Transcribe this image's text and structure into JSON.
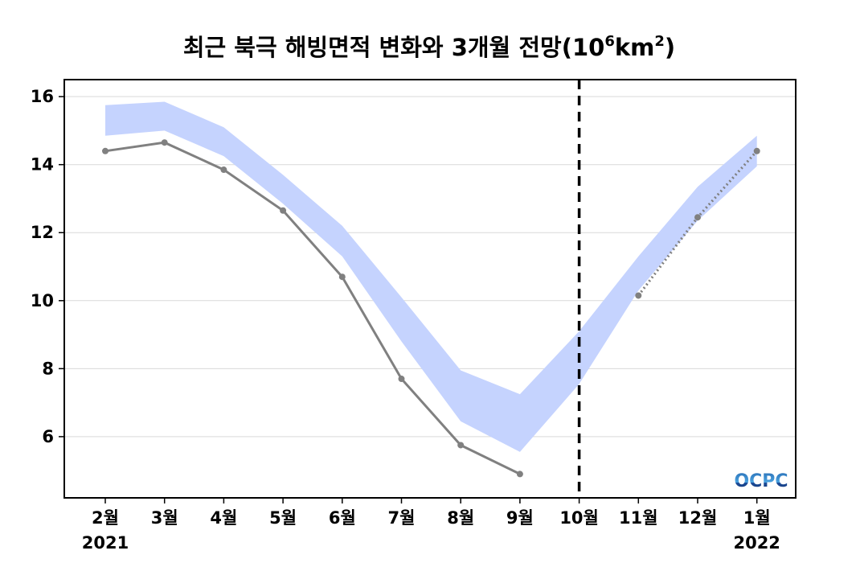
{
  "chart_data": {
    "type": "line",
    "title": "최근 북극 해빙면적 변화와 3개월 전망(10",
    "title_exp1": "6",
    "title_mid": "km",
    "title_exp2": "2",
    "title_end": ")",
    "categories": [
      "2월",
      "3월",
      "4월",
      "5월",
      "6월",
      "7월",
      "8월",
      "9월",
      "10월",
      "11월",
      "12월",
      "1월"
    ],
    "year_labels": [
      {
        "category": "2월",
        "label": "2021"
      },
      {
        "category": "1월",
        "label": "2022"
      }
    ],
    "ylim": [
      4.2,
      16.5
    ],
    "yticks": [
      6,
      8,
      10,
      12,
      14,
      16
    ],
    "grid": true,
    "forecast_divider_category": "10월",
    "series": [
      {
        "style": "solid",
        "color": "#808080",
        "points": [
          {
            "x": "2월",
            "y": 14.4
          },
          {
            "x": "3월",
            "y": 14.65
          },
          {
            "x": "4월",
            "y": 13.85
          },
          {
            "x": "5월",
            "y": 12.65
          },
          {
            "x": "6월",
            "y": 10.7
          },
          {
            "x": "7월",
            "y": 7.7
          },
          {
            "x": "8월",
            "y": 5.75
          },
          {
            "x": "9월",
            "y": 4.9
          }
        ]
      },
      {
        "style": "dotted",
        "color": "#808080",
        "points": [
          {
            "x": "11월",
            "y": 10.15
          },
          {
            "x": "12월",
            "y": 12.45
          },
          {
            "x": "1월",
            "y": 14.4
          }
        ]
      }
    ],
    "band": {
      "color": "#c5d3fe",
      "upper": [
        15.75,
        15.85,
        15.1,
        13.7,
        12.2,
        10.1,
        7.95,
        7.25,
        9.1,
        11.3,
        13.35,
        14.85
      ],
      "lower": [
        14.85,
        15.0,
        14.25,
        12.85,
        11.3,
        8.8,
        6.45,
        5.55,
        7.55,
        10.3,
        12.35,
        13.95
      ]
    },
    "logo_text": "OCPC"
  }
}
